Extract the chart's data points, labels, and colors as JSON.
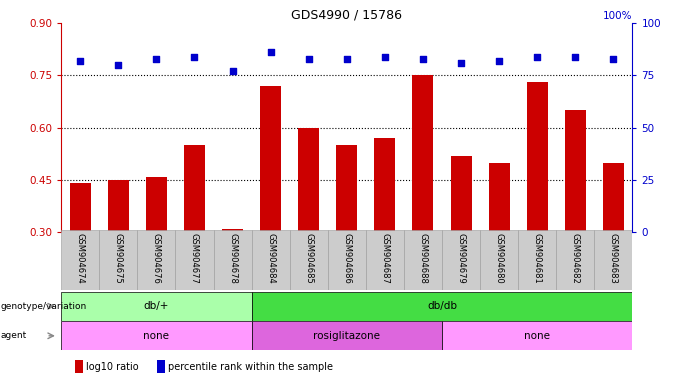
{
  "title": "GDS4990 / 15786",
  "samples": [
    "GSM904674",
    "GSM904675",
    "GSM904676",
    "GSM904677",
    "GSM904678",
    "GSM904684",
    "GSM904685",
    "GSM904686",
    "GSM904687",
    "GSM904688",
    "GSM904679",
    "GSM904680",
    "GSM904681",
    "GSM904682",
    "GSM904683"
  ],
  "bar_values": [
    0.44,
    0.45,
    0.46,
    0.55,
    0.31,
    0.72,
    0.6,
    0.55,
    0.57,
    0.75,
    0.52,
    0.5,
    0.73,
    0.65,
    0.5
  ],
  "dot_values": [
    82,
    80,
    83,
    84,
    77,
    86,
    83,
    83,
    84,
    83,
    81,
    82,
    84,
    84,
    83
  ],
  "ylim_left": [
    0.3,
    0.9
  ],
  "ylim_right": [
    0,
    100
  ],
  "yticks_left": [
    0.3,
    0.45,
    0.6,
    0.75,
    0.9
  ],
  "yticks_right": [
    0,
    25,
    50,
    75,
    100
  ],
  "hlines": [
    0.45,
    0.6,
    0.75
  ],
  "bar_color": "#cc0000",
  "dot_color": "#0000cc",
  "genotype_groups": [
    {
      "label": "db/+",
      "start": 0,
      "end": 5,
      "color": "#aaffaa"
    },
    {
      "label": "db/db",
      "start": 5,
      "end": 15,
      "color": "#44dd44"
    }
  ],
  "agent_groups": [
    {
      "label": "none",
      "start": 0,
      "end": 5,
      "color": "#ff99ff"
    },
    {
      "label": "rosiglitazone",
      "start": 5,
      "end": 10,
      "color": "#dd66dd"
    },
    {
      "label": "none",
      "start": 10,
      "end": 15,
      "color": "#ff99ff"
    }
  ],
  "legend_items": [
    {
      "color": "#cc0000",
      "label": "log10 ratio"
    },
    {
      "color": "#0000cc",
      "label": "percentile rank within the sample"
    }
  ]
}
